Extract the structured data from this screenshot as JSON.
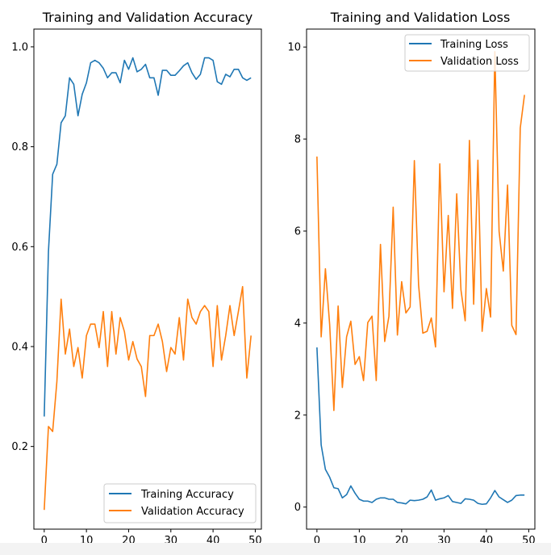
{
  "chart_data": [
    {
      "type": "line",
      "title": "Training and Validation Accuracy",
      "xlabel": "",
      "ylabel": "",
      "xlim": [
        -2.45,
        51.45
      ],
      "ylim": [
        0.0345,
        1.0355
      ],
      "xticks": [
        0,
        10,
        20,
        30,
        40,
        50
      ],
      "yticks": [
        0.2,
        0.4,
        0.6,
        0.8,
        1.0
      ],
      "ytick_labels": [
        "0.2",
        "0.4",
        "0.6",
        "0.8",
        "1.0"
      ],
      "legend": "lower right",
      "grid": false,
      "x": [
        0,
        1,
        2,
        3,
        4,
        5,
        6,
        7,
        8,
        9,
        10,
        11,
        12,
        13,
        14,
        15,
        16,
        17,
        18,
        19,
        20,
        21,
        22,
        23,
        24,
        25,
        26,
        27,
        28,
        29,
        30,
        31,
        32,
        33,
        34,
        35,
        36,
        37,
        38,
        39,
        40,
        41,
        42,
        43,
        44,
        45,
        46,
        47,
        48,
        49
      ],
      "series": [
        {
          "name": "Training Accuracy",
          "color": "#1f77b4",
          "values": [
            0.26,
            0.59,
            0.745,
            0.765,
            0.848,
            0.862,
            0.938,
            0.925,
            0.862,
            0.905,
            0.928,
            0.968,
            0.973,
            0.968,
            0.957,
            0.938,
            0.948,
            0.948,
            0.928,
            0.973,
            0.955,
            0.978,
            0.95,
            0.955,
            0.965,
            0.938,
            0.938,
            0.903,
            0.953,
            0.953,
            0.943,
            0.943,
            0.952,
            0.962,
            0.968,
            0.948,
            0.935,
            0.945,
            0.978,
            0.978,
            0.973,
            0.93,
            0.925,
            0.945,
            0.94,
            0.955,
            0.955,
            0.938,
            0.933,
            0.938
          ]
        },
        {
          "name": "Validation Accuracy",
          "color": "#ff7f0e",
          "values": [
            0.073,
            0.24,
            0.23,
            0.33,
            0.495,
            0.385,
            0.435,
            0.36,
            0.398,
            0.337,
            0.422,
            0.445,
            0.445,
            0.398,
            0.47,
            0.36,
            0.47,
            0.385,
            0.458,
            0.43,
            0.373,
            0.41,
            0.375,
            0.36,
            0.3,
            0.422,
            0.422,
            0.445,
            0.41,
            0.35,
            0.398,
            0.385,
            0.458,
            0.373,
            0.495,
            0.458,
            0.445,
            0.47,
            0.482,
            0.47,
            0.36,
            0.482,
            0.373,
            0.422,
            0.482,
            0.422,
            0.47,
            0.52,
            0.337,
            0.422
          ]
        }
      ]
    },
    {
      "type": "line",
      "title": "Training and Validation Loss",
      "xlabel": "",
      "ylabel": "",
      "xlim": [
        -2.45,
        51.45
      ],
      "ylim": [
        -0.48,
        10.39
      ],
      "xticks": [
        0,
        10,
        20,
        30,
        40,
        50
      ],
      "yticks": [
        0,
        2,
        4,
        6,
        8,
        10
      ],
      "ytick_labels": [
        "0",
        "2",
        "4",
        "6",
        "8",
        "10"
      ],
      "legend": "upper right",
      "grid": false,
      "x": [
        0,
        1,
        2,
        3,
        4,
        5,
        6,
        7,
        8,
        9,
        10,
        11,
        12,
        13,
        14,
        15,
        16,
        17,
        18,
        19,
        20,
        21,
        22,
        23,
        24,
        25,
        26,
        27,
        28,
        29,
        30,
        31,
        32,
        33,
        34,
        35,
        36,
        37,
        38,
        39,
        40,
        41,
        42,
        43,
        44,
        45,
        46,
        47,
        48,
        49
      ],
      "series": [
        {
          "name": "Training Loss",
          "color": "#1f77b4",
          "values": [
            3.47,
            1.35,
            0.82,
            0.65,
            0.42,
            0.4,
            0.2,
            0.27,
            0.46,
            0.3,
            0.17,
            0.13,
            0.13,
            0.1,
            0.17,
            0.2,
            0.2,
            0.17,
            0.17,
            0.1,
            0.09,
            0.07,
            0.15,
            0.14,
            0.15,
            0.17,
            0.22,
            0.37,
            0.15,
            0.18,
            0.2,
            0.25,
            0.12,
            0.1,
            0.08,
            0.18,
            0.17,
            0.15,
            0.08,
            0.06,
            0.07,
            0.2,
            0.36,
            0.22,
            0.16,
            0.1,
            0.15,
            0.25,
            0.26,
            0.26
          ]
        },
        {
          "name": "Validation Loss",
          "color": "#ff7f0e",
          "values": [
            7.62,
            3.7,
            5.18,
            3.97,
            2.1,
            4.37,
            2.6,
            3.7,
            4.04,
            3.1,
            3.27,
            2.75,
            4.01,
            4.15,
            2.75,
            5.71,
            3.6,
            4.15,
            6.52,
            3.74,
            4.9,
            4.22,
            4.35,
            7.53,
            4.83,
            3.78,
            3.82,
            4.11,
            3.48,
            7.46,
            4.68,
            6.34,
            4.32,
            6.81,
            4.72,
            4.05,
            7.97,
            4.41,
            7.54,
            3.82,
            4.75,
            4.13,
            9.9,
            6.0,
            5.13,
            7.0,
            3.95,
            3.75,
            8.24,
            8.96
          ]
        }
      ]
    }
  ]
}
